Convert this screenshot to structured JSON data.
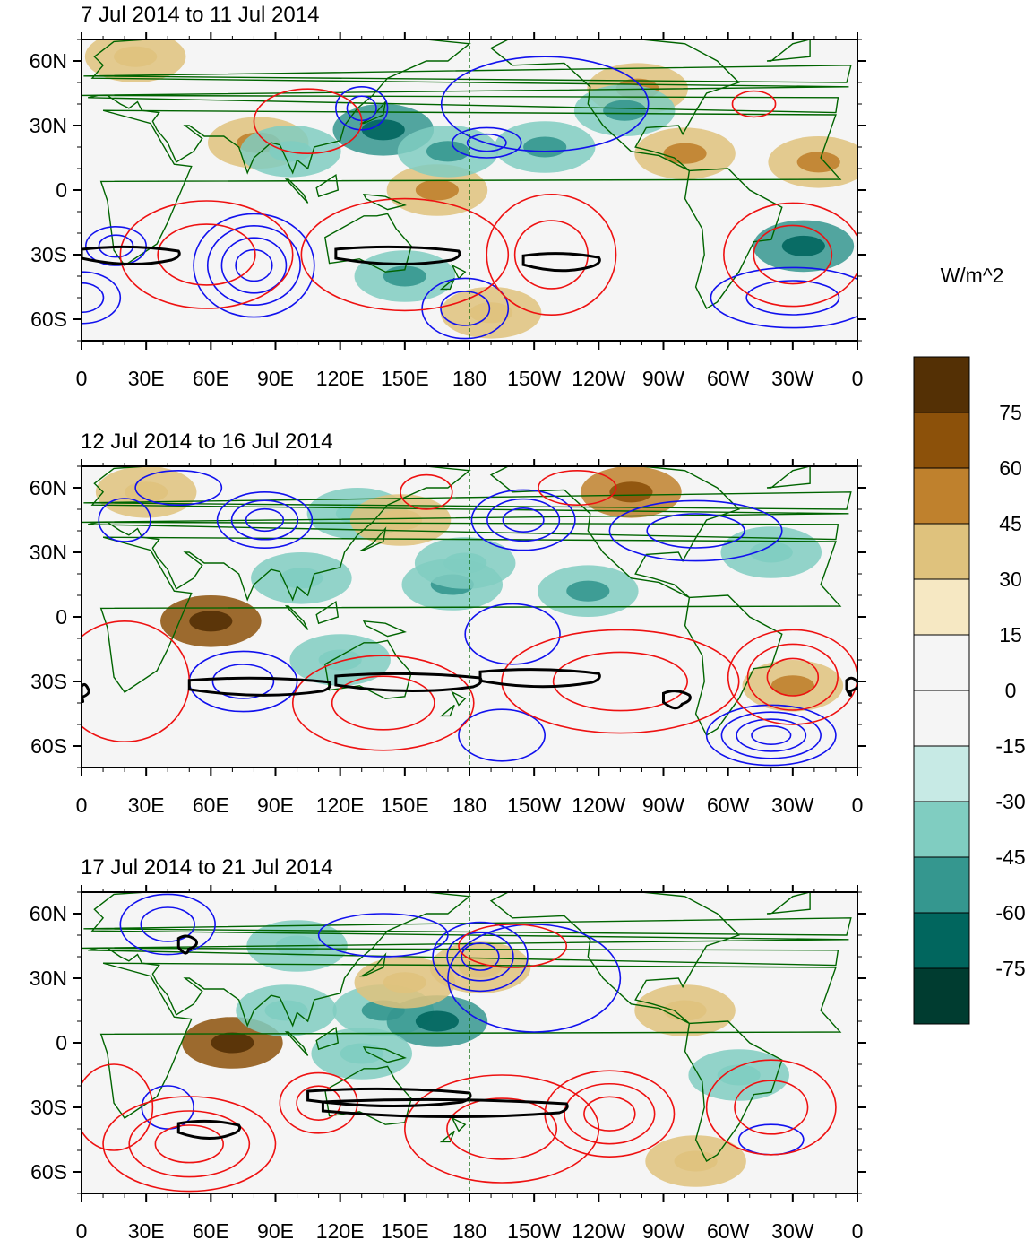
{
  "panels": [
    {
      "title": "7 Jul 2014 to 11 Jul 2014",
      "anomalies": [
        {
          "lon": 82,
          "lat": 22,
          "value": 40
        },
        {
          "lon": 97,
          "lat": 18,
          "value": -30
        },
        {
          "lon": 140,
          "lat": 28,
          "value": -45
        },
        {
          "lon": 165,
          "lat": 0,
          "value": 40
        },
        {
          "lon": 170,
          "lat": 18,
          "value": -40
        },
        {
          "lon": 215,
          "lat": 20,
          "value": -40
        },
        {
          "lon": 258,
          "lat": 47,
          "value": 40
        },
        {
          "lon": 252,
          "lat": 37,
          "value": -40
        },
        {
          "lon": 280,
          "lat": 17,
          "value": 40
        },
        {
          "lon": 342,
          "lat": 13,
          "value": 40
        },
        {
          "lon": 335,
          "lat": -26,
          "value": -45
        },
        {
          "lon": 190,
          "lat": -57,
          "value": 30
        },
        {
          "lon": 25,
          "lat": 62,
          "value": 30
        },
        {
          "lon": 150,
          "lat": -40,
          "value": -35
        }
      ],
      "contours_negative": [
        {
          "lon": 80,
          "lat": -35,
          "rx": 28,
          "ry": 24,
          "levels": 4
        },
        {
          "lon": 130,
          "lat": 38,
          "rx": 12,
          "ry": 10,
          "levels": 2
        },
        {
          "lon": 188,
          "lat": 22,
          "rx": 16,
          "ry": 7,
          "levels": 2
        },
        {
          "lon": 16,
          "lat": -26,
          "rx": 14,
          "ry": 9,
          "levels": 2
        },
        {
          "lon": 178,
          "lat": -55,
          "rx": 20,
          "ry": 14,
          "levels": 2
        },
        {
          "lon": 330,
          "lat": -50,
          "rx": 38,
          "ry": 14,
          "levels": 2
        },
        {
          "lon": 0,
          "lat": -50,
          "rx": 18,
          "ry": 12,
          "levels": 2
        },
        {
          "lon": 215,
          "lat": 40,
          "rx": 48,
          "ry": 22,
          "levels": 1
        }
      ],
      "contours_positive": [
        {
          "lon": 218,
          "lat": -30,
          "rx": 30,
          "ry": 28,
          "levels": 2
        },
        {
          "lon": 58,
          "lat": -30,
          "rx": 40,
          "ry": 25,
          "levels": 2
        },
        {
          "lon": 150,
          "lat": -30,
          "rx": 48,
          "ry": 26,
          "levels": 1
        },
        {
          "lon": 105,
          "lat": 32,
          "rx": 25,
          "ry": 15,
          "levels": 1
        },
        {
          "lon": 330,
          "lat": -30,
          "rx": 32,
          "ry": 24,
          "levels": 2
        },
        {
          "lon": 312,
          "lat": 40,
          "rx": 10,
          "ry": 6,
          "levels": 1
        }
      ],
      "zero_lines": [
        {
          "lon1": 0,
          "lon2": 45,
          "lat": -30
        },
        {
          "lon1": 118,
          "lon2": 175,
          "lat": -30
        },
        {
          "lon1": 205,
          "lon2": 240,
          "lat": -33
        }
      ]
    },
    {
      "title": "12 Jul 2014 to 16 Jul 2014",
      "anomalies": [
        {
          "lon": 60,
          "lat": -2,
          "value": 60
        },
        {
          "lon": 30,
          "lat": 58,
          "value": 30
        },
        {
          "lon": 102,
          "lat": 18,
          "value": -30
        },
        {
          "lon": 128,
          "lat": 48,
          "value": -30
        },
        {
          "lon": 172,
          "lat": 15,
          "value": -40
        },
        {
          "lon": 178,
          "lat": 25,
          "value": -30
        },
        {
          "lon": 235,
          "lat": 12,
          "value": -40
        },
        {
          "lon": 255,
          "lat": 58,
          "value": 50
        },
        {
          "lon": 320,
          "lat": 30,
          "value": -30
        },
        {
          "lon": 330,
          "lat": -32,
          "value": 35
        },
        {
          "lon": 148,
          "lat": 45,
          "value": 30
        },
        {
          "lon": 120,
          "lat": -20,
          "value": -30
        }
      ],
      "contours_negative": [
        {
          "lon": 85,
          "lat": 45,
          "rx": 22,
          "ry": 13,
          "levels": 3
        },
        {
          "lon": 205,
          "lat": 45,
          "rx": 24,
          "ry": 14,
          "levels": 3
        },
        {
          "lon": 75,
          "lat": -30,
          "rx": 25,
          "ry": 14,
          "levels": 2
        },
        {
          "lon": 200,
          "lat": -8,
          "rx": 22,
          "ry": 14,
          "levels": 1
        },
        {
          "lon": 195,
          "lat": -55,
          "rx": 20,
          "ry": 12,
          "levels": 1
        },
        {
          "lon": 320,
          "lat": -55,
          "rx": 30,
          "ry": 14,
          "levels": 4
        },
        {
          "lon": 20,
          "lat": 45,
          "rx": 12,
          "ry": 10,
          "levels": 1
        },
        {
          "lon": 285,
          "lat": 40,
          "rx": 40,
          "ry": 14,
          "levels": 2
        },
        {
          "lon": 45,
          "lat": 60,
          "rx": 20,
          "ry": 8,
          "levels": 1
        }
      ],
      "contours_positive": [
        {
          "lon": 330,
          "lat": -28,
          "rx": 30,
          "ry": 22,
          "levels": 3
        },
        {
          "lon": 160,
          "lat": 58,
          "rx": 12,
          "ry": 8,
          "levels": 1
        },
        {
          "lon": 250,
          "lat": -30,
          "rx": 55,
          "ry": 24,
          "levels": 2
        },
        {
          "lon": 20,
          "lat": -30,
          "rx": 30,
          "ry": 28,
          "levels": 1
        },
        {
          "lon": 140,
          "lat": -40,
          "rx": 42,
          "ry": 22,
          "levels": 2
        },
        {
          "lon": 230,
          "lat": 60,
          "rx": 18,
          "ry": 8,
          "levels": 1
        }
      ],
      "zero_lines": [
        {
          "lon1": 50,
          "lon2": 115,
          "lat": -32
        },
        {
          "lon1": 118,
          "lon2": 185,
          "lat": -30
        },
        {
          "lon1": 185,
          "lon2": 240,
          "lat": -28
        },
        {
          "lon1": 270,
          "lon2": 282,
          "lat": -38
        },
        {
          "lon1": 0,
          "lon2": 3,
          "lat": -35
        },
        {
          "lon1": 355,
          "lon2": 360,
          "lat": -32
        }
      ]
    },
    {
      "title": "17 Jul 2014 to 21 Jul 2014",
      "anomalies": [
        {
          "lon": 70,
          "lat": 0,
          "value": 60
        },
        {
          "lon": 95,
          "lat": 15,
          "value": -30
        },
        {
          "lon": 140,
          "lat": 15,
          "value": -40
        },
        {
          "lon": 165,
          "lat": 10,
          "value": -45
        },
        {
          "lon": 185,
          "lat": 35,
          "value": 30
        },
        {
          "lon": 150,
          "lat": 28,
          "value": 30
        },
        {
          "lon": 280,
          "lat": 15,
          "value": 30
        },
        {
          "lon": 305,
          "lat": -15,
          "value": -30
        },
        {
          "lon": 285,
          "lat": -55,
          "value": 30
        },
        {
          "lon": 130,
          "lat": -5,
          "value": -30
        },
        {
          "lon": 100,
          "lat": 45,
          "value": -30
        }
      ],
      "contours_negative": [
        {
          "lon": 40,
          "lat": 55,
          "rx": 22,
          "ry": 14,
          "levels": 2
        },
        {
          "lon": 185,
          "lat": 40,
          "rx": 22,
          "ry": 16,
          "levels": 3
        },
        {
          "lon": 140,
          "lat": 50,
          "rx": 30,
          "ry": 10,
          "levels": 1
        },
        {
          "lon": 320,
          "lat": -45,
          "rx": 15,
          "ry": 7,
          "levels": 1
        },
        {
          "lon": 40,
          "lat": -30,
          "rx": 12,
          "ry": 10,
          "levels": 1
        },
        {
          "lon": 210,
          "lat": 30,
          "rx": 40,
          "ry": 25,
          "levels": 1
        }
      ],
      "contours_positive": [
        {
          "lon": 50,
          "lat": -47,
          "rx": 40,
          "ry": 22,
          "levels": 3
        },
        {
          "lon": 195,
          "lat": -40,
          "rx": 45,
          "ry": 25,
          "levels": 2
        },
        {
          "lon": 245,
          "lat": -33,
          "rx": 30,
          "ry": 20,
          "levels": 3
        },
        {
          "lon": 320,
          "lat": -30,
          "rx": 30,
          "ry": 22,
          "levels": 2
        },
        {
          "lon": 110,
          "lat": -28,
          "rx": 18,
          "ry": 14,
          "levels": 2
        },
        {
          "lon": 200,
          "lat": 45,
          "rx": 25,
          "ry": 10,
          "levels": 1
        },
        {
          "lon": 15,
          "lat": -30,
          "rx": 18,
          "ry": 20,
          "levels": 1
        }
      ],
      "zero_lines": [
        {
          "lon1": 105,
          "lon2": 180,
          "lat": -25
        },
        {
          "lon1": 112,
          "lon2": 225,
          "lat": -30
        },
        {
          "lon1": 45,
          "lon2": 73,
          "lat": -40
        },
        {
          "lon1": 45,
          "lon2": 53,
          "lat": 46
        }
      ]
    }
  ],
  "axes": {
    "x_ticks": [
      "0",
      "30E",
      "60E",
      "90E",
      "120E",
      "150E",
      "180",
      "150W",
      "120W",
      "90W",
      "60W",
      "30W",
      "0"
    ],
    "y_ticks": [
      "60N",
      "30N",
      "0",
      "30S",
      "60S"
    ],
    "lon_values": [
      0,
      30,
      60,
      90,
      120,
      150,
      180,
      210,
      240,
      270,
      300,
      330,
      360
    ],
    "lat_values": [
      60,
      30,
      0,
      -30,
      -60
    ],
    "lat_range": [
      -70,
      70
    ],
    "lon_range": [
      0,
      360
    ]
  },
  "colorbar": {
    "units": "W/m^2",
    "tick_labels": [
      "75",
      "60",
      "45",
      "30",
      "15",
      "0",
      "-15",
      "-30",
      "-45",
      "-60",
      "-75"
    ],
    "colors": [
      "#543005",
      "#8c510a",
      "#bf812d",
      "#dfc27d",
      "#f6e8c3",
      "#f5f5f5",
      "#f5f5f5",
      "#c7eae5",
      "#80cdc1",
      "#35978f",
      "#01665e",
      "#003c30"
    ]
  },
  "colors": {
    "positive_contour": "#ee1111",
    "negative_contour": "#1111ee",
    "zero_contour": "#000000",
    "coastline": "#006400",
    "background": "#f5f5f5"
  }
}
